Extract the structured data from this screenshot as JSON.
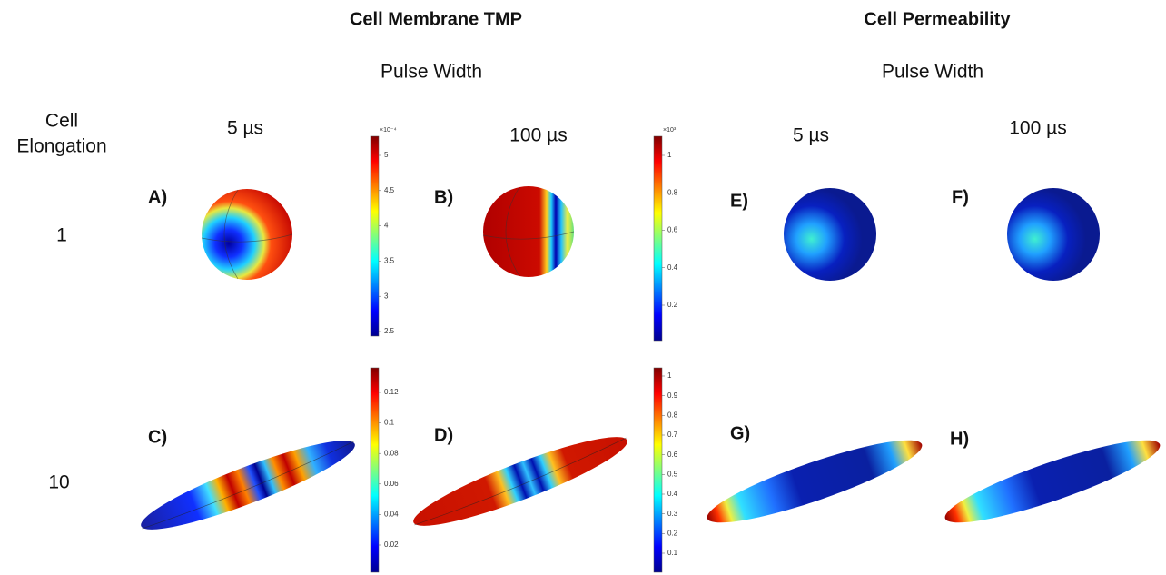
{
  "header": {
    "left_title": "Cell Membrane TMP",
    "right_title": "Cell Permeability",
    "left_pulse_width": "Pulse Width",
    "right_pulse_width": "Pulse Width",
    "row_header": [
      "Cell",
      "Elongation"
    ]
  },
  "columns": [
    "5 µs",
    "100 µs",
    "5 µs",
    "100 µs"
  ],
  "rows": [
    "1",
    "10"
  ],
  "panels": [
    "A)",
    "B)",
    "C)",
    "D)",
    "E)",
    "F)",
    "G)",
    "H)"
  ],
  "colorbars": [
    {
      "exponent": "×10⁻⁴",
      "ticks": [
        "5",
        "4.5",
        "4",
        "3.5",
        "3",
        "2.5"
      ]
    },
    {
      "exponent": "×10³",
      "ticks": [
        "1",
        "0.8",
        "0.6",
        "0.4",
        "0.2"
      ]
    },
    {
      "ticks": [
        "0.12",
        "0.1",
        "0.08",
        "0.06",
        "0.04",
        "0.02"
      ]
    },
    {
      "ticks": [
        "1",
        "0.9",
        "0.8",
        "0.7",
        "0.6",
        "0.5",
        "0.4",
        "0.3",
        "0.2",
        "0.1"
      ]
    }
  ]
}
